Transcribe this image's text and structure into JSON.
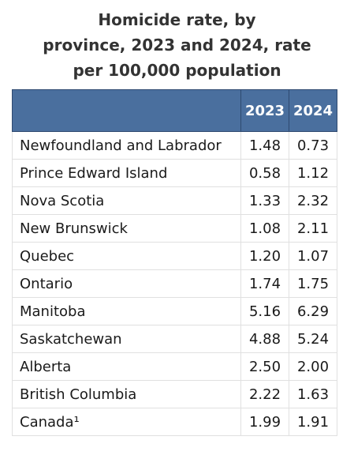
{
  "title_lines": [
    "Homicide rate, by",
    "province, 2023 and 2024, rate",
    "per 100,000 population"
  ],
  "chart_data": {
    "type": "table",
    "title": "Homicide rate, by province, 2023 and 2024, rate per 100,000 population",
    "columns": [
      "",
      "2023",
      "2024"
    ],
    "rows": [
      {
        "label": "Newfoundland and Labrador",
        "values": [
          "1.48",
          "0.73"
        ]
      },
      {
        "label": "Prince Edward Island",
        "values": [
          "0.58",
          "1.12"
        ]
      },
      {
        "label": "Nova Scotia",
        "values": [
          "1.33",
          "2.32"
        ]
      },
      {
        "label": "New Brunswick",
        "values": [
          "1.08",
          "2.11"
        ]
      },
      {
        "label": "Quebec",
        "values": [
          "1.20",
          "1.07"
        ]
      },
      {
        "label": "Ontario",
        "values": [
          "1.74",
          "1.75"
        ]
      },
      {
        "label": "Manitoba",
        "values": [
          "5.16",
          "6.29"
        ]
      },
      {
        "label": "Saskatchewan",
        "values": [
          "4.88",
          "5.24"
        ]
      },
      {
        "label": "Alberta",
        "values": [
          "2.50",
          "2.00"
        ]
      },
      {
        "label": "British Columbia",
        "values": [
          "2.22",
          "1.63"
        ]
      },
      {
        "label": "Canada¹",
        "values": [
          "1.99",
          "1.91"
        ]
      }
    ]
  },
  "colors": {
    "header_background": "#4a6f9e",
    "header_text": "#ffffff",
    "cell_border": "#e0e0e0"
  }
}
